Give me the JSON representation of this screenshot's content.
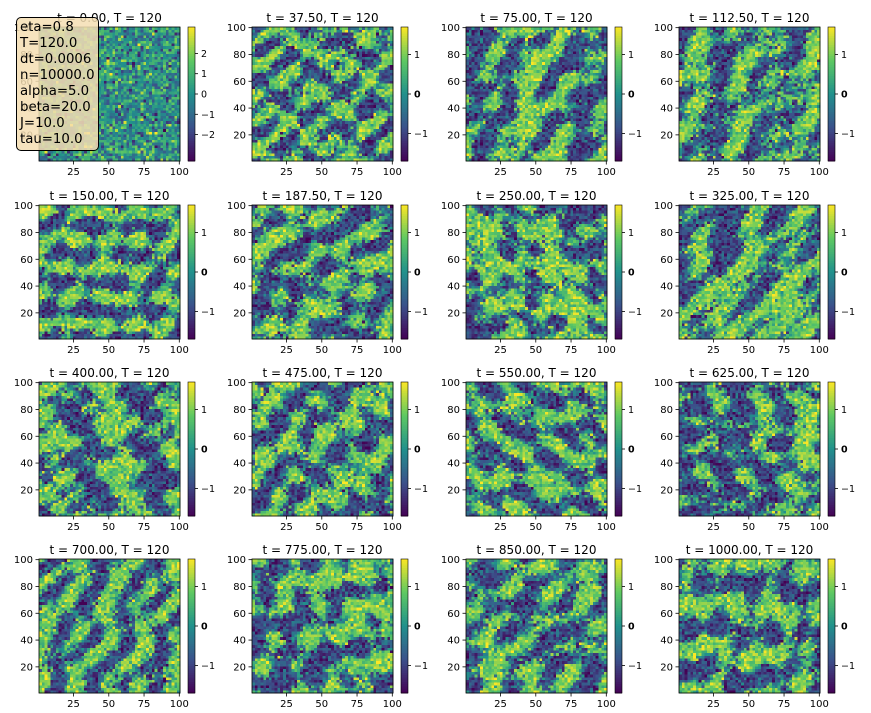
{
  "chart_data": {
    "type": "heatmap",
    "grid": {
      "rows": 4,
      "cols": 4
    },
    "x_range": [
      1,
      100
    ],
    "y_range": [
      1,
      100
    ],
    "x_ticks": [
      25,
      50,
      75,
      100
    ],
    "y_ticks": [
      20,
      40,
      60,
      80,
      100
    ],
    "colormap": "viridis",
    "colormap_colors": [
      "#440154",
      "#3b528b",
      "#21918c",
      "#5ec962",
      "#fde725"
    ],
    "panels": [
      {
        "title": "t = 0.00, T = 120",
        "vmin": -3.3,
        "vmax": 3.3,
        "ticks": [
          2,
          1,
          0,
          -1,
          -2
        ],
        "bold_tick": null,
        "pattern": "noise",
        "seed": 11
      },
      {
        "title": "t = 37.50, T = 120",
        "vmin": -1.7,
        "vmax": 1.7,
        "ticks": [
          1,
          0,
          -1
        ],
        "bold_tick": 0,
        "pattern": "domains",
        "seed": 23
      },
      {
        "title": "t = 75.00, T = 120",
        "vmin": -1.7,
        "vmax": 1.7,
        "ticks": [
          1,
          0,
          -1
        ],
        "bold_tick": 0,
        "pattern": "domains",
        "seed": 37
      },
      {
        "title": "t = 112.50, T = 120",
        "vmin": -1.7,
        "vmax": 1.7,
        "ticks": [
          1,
          0,
          -1
        ],
        "bold_tick": 0,
        "pattern": "domains",
        "seed": 41
      },
      {
        "title": "t = 150.00, T = 120",
        "vmin": -1.7,
        "vmax": 1.7,
        "ticks": [
          1,
          0,
          -1
        ],
        "bold_tick": 0,
        "pattern": "domains",
        "seed": 53
      },
      {
        "title": "t = 187.50, T = 120",
        "vmin": -1.7,
        "vmax": 1.7,
        "ticks": [
          1,
          0,
          -1
        ],
        "bold_tick": 0,
        "pattern": "domains",
        "seed": 67
      },
      {
        "title": "t = 250.00, T = 120",
        "vmin": -1.7,
        "vmax": 1.7,
        "ticks": [
          1,
          0,
          -1
        ],
        "bold_tick": 0,
        "pattern": "domains",
        "seed": 71
      },
      {
        "title": "t = 325.00, T = 120",
        "vmin": -1.7,
        "vmax": 1.7,
        "ticks": [
          1,
          0,
          -1
        ],
        "bold_tick": 0,
        "pattern": "domains",
        "seed": 83
      },
      {
        "title": "t = 400.00, T = 120",
        "vmin": -1.7,
        "vmax": 1.7,
        "ticks": [
          1,
          0,
          -1
        ],
        "bold_tick": 0,
        "pattern": "domains",
        "seed": 97
      },
      {
        "title": "t = 475.00, T = 120",
        "vmin": -1.7,
        "vmax": 1.7,
        "ticks": [
          1,
          0,
          -1
        ],
        "bold_tick": 0,
        "pattern": "domains",
        "seed": 101
      },
      {
        "title": "t = 550.00, T = 120",
        "vmin": -1.7,
        "vmax": 1.7,
        "ticks": [
          1,
          0,
          -1
        ],
        "bold_tick": 0,
        "pattern": "domains",
        "seed": 113
      },
      {
        "title": "t = 625.00, T = 120",
        "vmin": -1.7,
        "vmax": 1.7,
        "ticks": [
          1,
          0,
          -1
        ],
        "bold_tick": 0,
        "pattern": "domains",
        "seed": 127
      },
      {
        "title": "t = 700.00, T = 120",
        "vmin": -1.7,
        "vmax": 1.7,
        "ticks": [
          1,
          0,
          -1
        ],
        "bold_tick": 0,
        "pattern": "domains",
        "seed": 131
      },
      {
        "title": "t = 775.00, T = 120",
        "vmin": -1.7,
        "vmax": 1.7,
        "ticks": [
          1,
          0,
          -1
        ],
        "bold_tick": 0,
        "pattern": "domains",
        "seed": 149
      },
      {
        "title": "t = 850.00, T = 120",
        "vmin": -1.7,
        "vmax": 1.7,
        "ticks": [
          1,
          0,
          -1
        ],
        "bold_tick": 0,
        "pattern": "domains",
        "seed": 157
      },
      {
        "title": "t = 1000.00, T = 120",
        "vmin": -1.7,
        "vmax": 1.7,
        "ticks": [
          1,
          0,
          -1
        ],
        "bold_tick": 0,
        "pattern": "domains",
        "seed": 163
      }
    ]
  },
  "params": [
    "eta=0.8",
    "T=120.0",
    "dt=0.0006",
    "n=10000.0",
    "alpha=5.0",
    "beta=20.0",
    "J=10.0",
    "tau=10.0"
  ]
}
